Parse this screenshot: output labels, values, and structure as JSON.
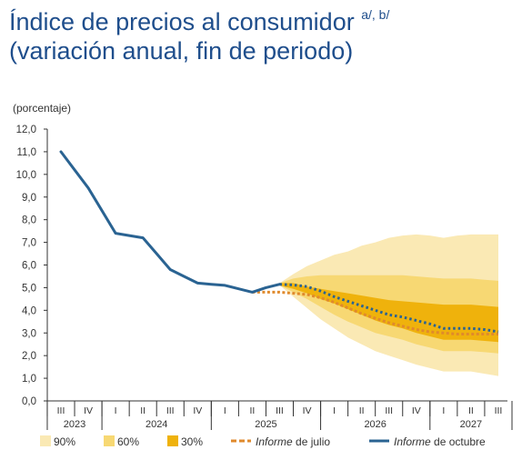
{
  "header": {
    "title_line1": "Índice de precios al consumidor",
    "title_sup": "a/, b/",
    "title_line2": "(variación anual, fin de periodo)"
  },
  "colors": {
    "band90": "#fae9b4",
    "band60": "#f7d873",
    "band30": "#efb20c",
    "julio": "#e08a2c",
    "octubre": "#2a6392",
    "axis": "#333333",
    "title": "#1f4e8c"
  },
  "chart_data": {
    "type": "line",
    "ylabel": "(porcentaje)",
    "ylim": [
      0,
      12
    ],
    "yticks": [
      "0,0",
      "1,0",
      "2,0",
      "3,0",
      "4,0",
      "5,0",
      "6,0",
      "7,0",
      "8,0",
      "9,0",
      "10,0",
      "11,0",
      "12,0"
    ],
    "quarters": [
      "III",
      "IV",
      "I",
      "II",
      "III",
      "IV",
      "I",
      "II",
      "III",
      "IV",
      "I",
      "II",
      "III",
      "IV",
      "I",
      "II",
      "III"
    ],
    "years": [
      {
        "label": "2023",
        "from": 0,
        "to": 1
      },
      {
        "label": "2024",
        "from": 2,
        "to": 5
      },
      {
        "label": "2025",
        "from": 6,
        "to": 9
      },
      {
        "label": "2026",
        "from": 10,
        "to": 13
      },
      {
        "label": "2027",
        "from": 14,
        "to": 16
      }
    ],
    "series": [
      {
        "name": "Informe de octubre",
        "x": [
          0,
          0.5,
          1,
          1.5,
          2,
          2.5,
          3,
          3.5,
          4,
          4.5,
          5,
          5.5,
          6,
          6.5,
          7,
          7.5,
          8
        ],
        "y": [
          11.0,
          10.2,
          9.4,
          8.4,
          7.4,
          7.3,
          7.2,
          6.5,
          5.8,
          5.5,
          5.2,
          5.15,
          5.1,
          4.95,
          4.8,
          5.0,
          5.15
        ]
      },
      {
        "name": "Informe de octubre (proyección)",
        "x": [
          8,
          8.5,
          9,
          9.5,
          10,
          10.5,
          11,
          11.5,
          12,
          12.5,
          13,
          13.5,
          14,
          14.5,
          15,
          15.5,
          16
        ],
        "y": [
          5.15,
          5.12,
          5.05,
          4.85,
          4.6,
          4.4,
          4.2,
          4.0,
          3.8,
          3.7,
          3.55,
          3.4,
          3.2,
          3.2,
          3.2,
          3.15,
          3.05
        ]
      },
      {
        "name": "Informe de julio",
        "x": [
          7,
          7.5,
          8,
          8.5,
          9,
          9.5,
          10,
          10.5,
          11,
          11.5,
          12,
          12.5,
          13,
          13.5,
          14,
          14.5,
          15,
          15.5,
          16
        ],
        "y": [
          4.8,
          4.8,
          4.8,
          4.75,
          4.7,
          4.55,
          4.35,
          4.1,
          3.85,
          3.65,
          3.45,
          3.3,
          3.15,
          3.05,
          3.0,
          2.95,
          2.95,
          2.95,
          2.95
        ]
      }
    ],
    "fan": {
      "x": [
        8,
        8.5,
        9,
        9.5,
        10,
        10.5,
        11,
        11.5,
        12,
        12.5,
        13,
        13.5,
        14,
        14.5,
        15,
        15.5,
        16
      ],
      "upper90": [
        5.2,
        5.6,
        5.95,
        6.2,
        6.45,
        6.6,
        6.85,
        7.0,
        7.2,
        7.3,
        7.35,
        7.3,
        7.2,
        7.3,
        7.35,
        7.35,
        7.35
      ],
      "lower90": [
        5.1,
        4.6,
        4.1,
        3.6,
        3.2,
        2.8,
        2.5,
        2.2,
        2.0,
        1.8,
        1.6,
        1.45,
        1.3,
        1.3,
        1.3,
        1.2,
        1.1
      ],
      "upper60": [
        5.2,
        5.4,
        5.5,
        5.55,
        5.55,
        5.55,
        5.55,
        5.55,
        5.55,
        5.55,
        5.5,
        5.45,
        5.4,
        5.4,
        5.4,
        5.35,
        5.3
      ],
      "lower60": [
        5.1,
        4.8,
        4.5,
        4.15,
        3.8,
        3.5,
        3.25,
        3.0,
        2.85,
        2.7,
        2.5,
        2.35,
        2.2,
        2.2,
        2.2,
        2.15,
        2.1
      ],
      "upper30": [
        5.2,
        5.2,
        5.05,
        4.95,
        4.85,
        4.75,
        4.65,
        4.55,
        4.45,
        4.4,
        4.35,
        4.3,
        4.25,
        4.25,
        4.25,
        4.2,
        4.15
      ],
      "lower30": [
        5.1,
        4.95,
        4.75,
        4.5,
        4.3,
        4.05,
        3.8,
        3.55,
        3.35,
        3.2,
        3.0,
        2.85,
        2.7,
        2.7,
        2.7,
        2.65,
        2.6
      ]
    },
    "legend": [
      {
        "type": "box",
        "key": "band90",
        "label": "90%"
      },
      {
        "type": "box",
        "key": "band60",
        "label": "60%"
      },
      {
        "type": "box",
        "key": "band30",
        "label": "30%"
      },
      {
        "type": "dash",
        "key": "julio",
        "label_italic": "Informe",
        "label_rest": " de julio"
      },
      {
        "type": "solid",
        "key": "octubre",
        "label_italic": "Informe",
        "label_rest": " de octubre"
      }
    ]
  }
}
